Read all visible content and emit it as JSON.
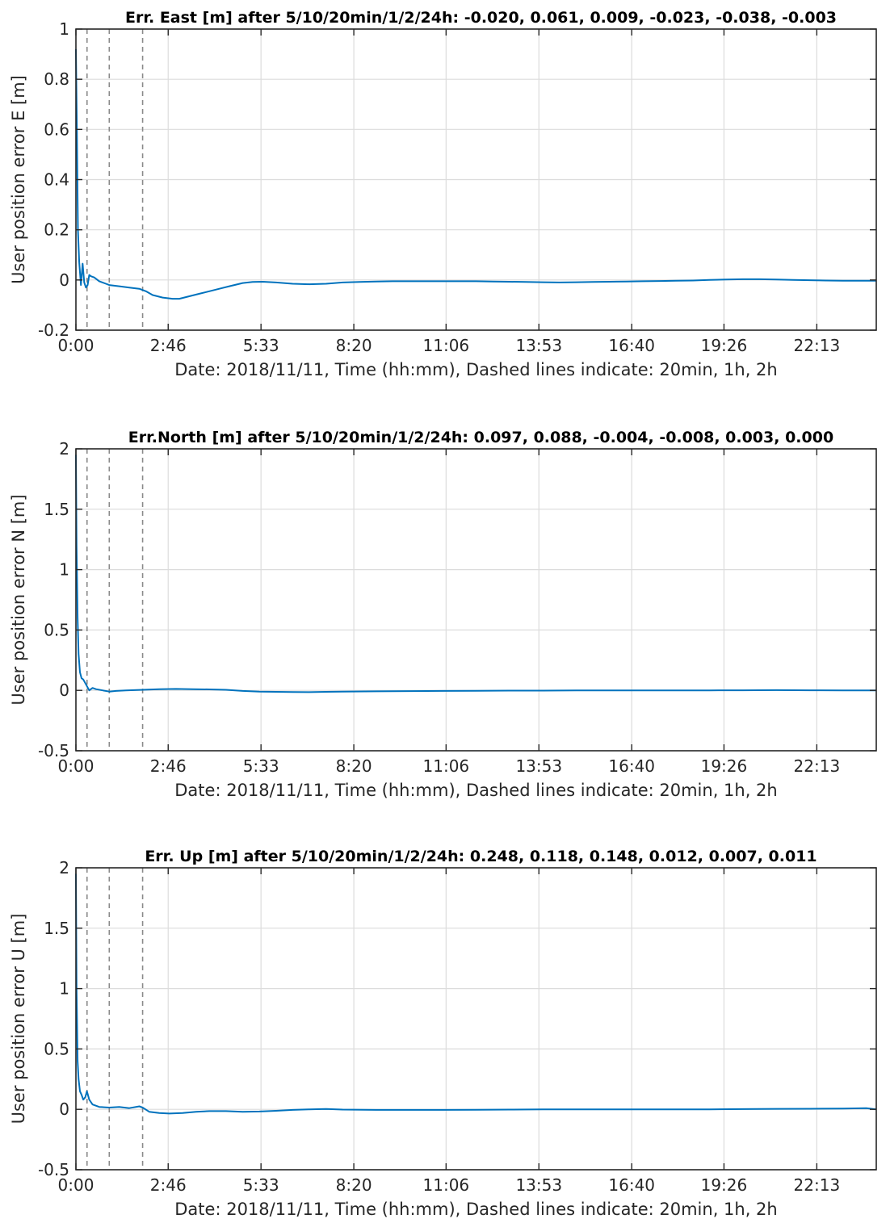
{
  "colors": {
    "series": "#0072BD",
    "axis": "#262626",
    "grid": "#dcdcdc",
    "dashed": "#8a8a8a"
  },
  "chart_data": [
    {
      "type": "line",
      "title": "Err. East [m] after 5/10/20min/1/2/24h: -0.020,  0.061,  0.009, -0.023, -0.038, -0.003",
      "xlabel": "Date: 2018/11/11, Time (hh:mm), Dashed lines indicate: 20min, 1h, 2h",
      "ylabel": "User position error E [m]",
      "xlim": [
        0,
        24
      ],
      "ylim": [
        -0.2,
        1
      ],
      "xticks": [
        0,
        2.7667,
        5.55,
        8.3333,
        11.1,
        13.8833,
        16.6667,
        19.4333,
        22.2167
      ],
      "xtick_labels": [
        "0:00",
        "2:46",
        "5:33",
        "8:20",
        "11:06",
        "13:53",
        "16:40",
        "19:26",
        "22:13"
      ],
      "yticks": [
        -0.2,
        0,
        0.2,
        0.4,
        0.6,
        0.8,
        1
      ],
      "ytick_labels": [
        "-0.2",
        "0",
        "0.2",
        "0.4",
        "0.6",
        "0.8",
        "1"
      ],
      "vlines_hours": [
        0.3333,
        1,
        2
      ],
      "grid": true,
      "series": [
        {
          "x": [
            0,
            0.03,
            0.06,
            0.1,
            0.15,
            0.2,
            0.25,
            0.3,
            0.35,
            0.4,
            0.45,
            0.55,
            0.7,
            0.9,
            1.0,
            1.3,
            1.6,
            1.9,
            2.1,
            2.3,
            2.6,
            2.9,
            3.1,
            3.4,
            3.7,
            4.0,
            4.3,
            4.6,
            5.0,
            5.3,
            5.6,
            6.0,
            6.5,
            7.0,
            7.5,
            8.0,
            8.5,
            9.0,
            9.5,
            10.0,
            10.5,
            11.0,
            11.5,
            12.0,
            12.5,
            13.0,
            13.5,
            14.0,
            14.5,
            15.0,
            15.5,
            16.0,
            16.5,
            17.0,
            17.5,
            18.0,
            18.5,
            19.0,
            19.5,
            20.0,
            20.5,
            21.0,
            21.5,
            22.0,
            22.5,
            23.0,
            23.5,
            24.0
          ],
          "y": [
            0.92,
            0.6,
            0.2,
            0.07,
            -0.02,
            0.065,
            -0.01,
            -0.03,
            -0.02,
            0.02,
            0.015,
            0.01,
            -0.005,
            -0.015,
            -0.02,
            -0.025,
            -0.03,
            -0.035,
            -0.045,
            -0.06,
            -0.07,
            -0.075,
            -0.075,
            -0.065,
            -0.055,
            -0.045,
            -0.035,
            -0.025,
            -0.012,
            -0.008,
            -0.007,
            -0.01,
            -0.015,
            -0.017,
            -0.015,
            -0.01,
            -0.008,
            -0.006,
            -0.005,
            -0.005,
            -0.005,
            -0.005,
            -0.005,
            -0.005,
            -0.006,
            -0.007,
            -0.008,
            -0.009,
            -0.01,
            -0.009,
            -0.008,
            -0.007,
            -0.006,
            -0.005,
            -0.004,
            -0.003,
            -0.002,
            0.0,
            0.002,
            0.003,
            0.003,
            0.002,
            0.0,
            -0.001,
            -0.002,
            -0.003,
            -0.003,
            -0.003
          ]
        }
      ]
    },
    {
      "type": "line",
      "title": "Err.North [m] after 5/10/20min/1/2/24h: 0.097,  0.088, -0.004, -0.008,  0.003,  0.000",
      "xlabel": "Date: 2018/11/11, Time (hh:mm), Dashed lines indicate: 20min, 1h, 2h",
      "ylabel": "User position error N [m]",
      "xlim": [
        0,
        24
      ],
      "ylim": [
        -0.5,
        2
      ],
      "xticks": [
        0,
        2.7667,
        5.55,
        8.3333,
        11.1,
        13.8833,
        16.6667,
        19.4333,
        22.2167
      ],
      "xtick_labels": [
        "0:00",
        "2:46",
        "5:33",
        "8:20",
        "11:06",
        "13:53",
        "16:40",
        "19:26",
        "22:13"
      ],
      "yticks": [
        -0.5,
        0,
        0.5,
        1,
        1.5,
        2
      ],
      "ytick_labels": [
        "-0.5",
        "0",
        "0.5",
        "1",
        "1.5",
        "2"
      ],
      "vlines_hours": [
        0.3333,
        1,
        2
      ],
      "grid": true,
      "series": [
        {
          "x": [
            0,
            0.02,
            0.05,
            0.08,
            0.12,
            0.17,
            0.22,
            0.3,
            0.4,
            0.5,
            0.6,
            0.8,
            1.0,
            1.2,
            1.5,
            2.0,
            2.5,
            3.0,
            3.5,
            4.0,
            4.5,
            5.0,
            5.5,
            6.0,
            6.5,
            7.0,
            7.5,
            8.0,
            9.0,
            10.0,
            11.0,
            12.0,
            13.0,
            14.0,
            15.0,
            16.0,
            17.0,
            18.0,
            19.0,
            20.0,
            21.0,
            22.0,
            23.0,
            24.0
          ],
          "y": [
            1.95,
            1.2,
            0.6,
            0.3,
            0.15,
            0.1,
            0.09,
            0.05,
            0.0,
            0.02,
            0.01,
            0.0,
            -0.01,
            -0.005,
            0.0,
            0.005,
            0.01,
            0.012,
            0.01,
            0.008,
            0.005,
            -0.005,
            -0.01,
            -0.012,
            -0.014,
            -0.015,
            -0.012,
            -0.01,
            -0.008,
            -0.006,
            -0.005,
            -0.004,
            -0.002,
            -0.002,
            -0.001,
            -0.001,
            0.0,
            0.0,
            0.0,
            0.001,
            0.002,
            0.001,
            0.0,
            0.0
          ]
        }
      ]
    },
    {
      "type": "line",
      "title": "Err. Up [m] after 5/10/20min/1/2/24h: 0.248, 0.118, 0.148, 0.012, 0.007, 0.011",
      "xlabel": "Date: 2018/11/11, Time (hh:mm), Dashed lines indicate: 20min, 1h, 2h",
      "ylabel": "User position error U [m]",
      "xlim": [
        0,
        24
      ],
      "ylim": [
        -0.5,
        2
      ],
      "xticks": [
        0,
        2.7667,
        5.55,
        8.3333,
        11.1,
        13.8833,
        16.6667,
        19.4333,
        22.2167
      ],
      "xtick_labels": [
        "0:00",
        "2:46",
        "5:33",
        "8:20",
        "11:06",
        "13:53",
        "16:40",
        "19:26",
        "22:13"
      ],
      "yticks": [
        -0.5,
        0,
        0.5,
        1,
        1.5,
        2
      ],
      "ytick_labels": [
        "-0.5",
        "0",
        "0.5",
        "1",
        "1.5",
        "2"
      ],
      "vlines_hours": [
        0.3333,
        1,
        2
      ],
      "grid": true,
      "series": [
        {
          "x": [
            0,
            0.02,
            0.05,
            0.08,
            0.12,
            0.17,
            0.22,
            0.28,
            0.33,
            0.4,
            0.5,
            0.7,
            1.0,
            1.3,
            1.6,
            1.9,
            2.0,
            2.2,
            2.5,
            2.8,
            3.2,
            3.6,
            4.0,
            4.5,
            5.0,
            5.5,
            6.0,
            6.5,
            7.0,
            7.5,
            8.0,
            9.0,
            10.0,
            11.0,
            12.0,
            13.0,
            14.0,
            15.0,
            16.0,
            17.0,
            18.0,
            19.0,
            20.0,
            21.0,
            22.0,
            23.0,
            23.7,
            24.0
          ],
          "y": [
            1.95,
            1.0,
            0.4,
            0.25,
            0.15,
            0.12,
            0.08,
            0.1,
            0.15,
            0.08,
            0.04,
            0.02,
            0.015,
            0.02,
            0.01,
            0.025,
            0.015,
            -0.02,
            -0.03,
            -0.035,
            -0.03,
            -0.02,
            -0.015,
            -0.015,
            -0.02,
            -0.018,
            -0.012,
            -0.005,
            0.0,
            0.003,
            -0.002,
            -0.005,
            -0.005,
            -0.005,
            -0.004,
            -0.002,
            0.0,
            0.0,
            0.0,
            0.0,
            0.0,
            0.0,
            0.002,
            0.004,
            0.005,
            0.006,
            0.01,
            0.0
          ]
        }
      ]
    }
  ]
}
